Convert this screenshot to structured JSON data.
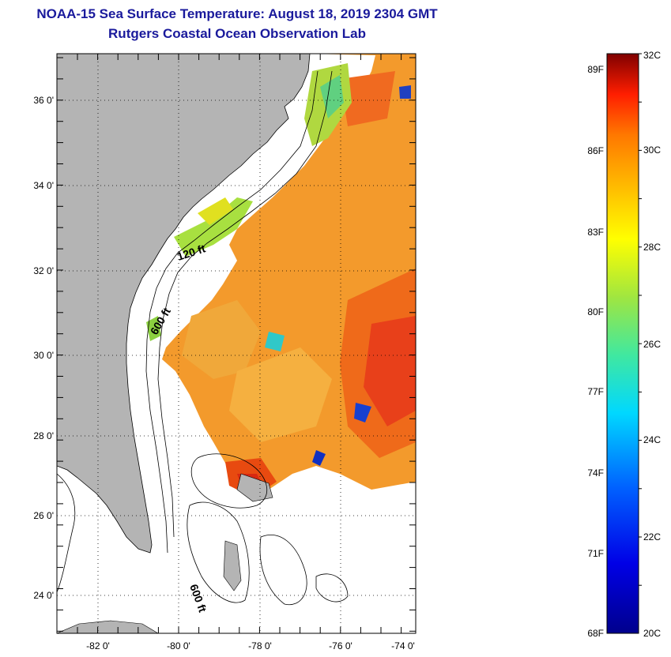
{
  "header": {
    "title_line1": "NOAA-15 Sea Surface Temperature:  August 18, 2019 2304 GMT",
    "title_line2": "Rutgers Coastal Ocean Observation Lab"
  },
  "map": {
    "lat_labels": [
      "36 0'",
      "34 0'",
      "32 0'",
      "30 0'",
      "28 0'",
      "26 0'",
      "24 0'"
    ],
    "lon_labels": [
      "-82 0'",
      "-80 0'",
      "-78 0'",
      "-76 0'",
      "-74 0'"
    ],
    "depth_labels": [
      "120 ft",
      "600 ft",
      "600 ft"
    ]
  },
  "colorbar": {
    "fahrenheit_labels": [
      "89F",
      "86F",
      "83F",
      "80F",
      "77F",
      "74F",
      "71F",
      "68F"
    ],
    "celsius_labels": [
      "32C",
      "30C",
      "28C",
      "26C",
      "24C",
      "22C",
      "20C"
    ]
  },
  "colors": {
    "land": "#b4b4b4",
    "title": "#1a1a9c",
    "warm": "#f07818",
    "hot": "#e61e0a"
  }
}
